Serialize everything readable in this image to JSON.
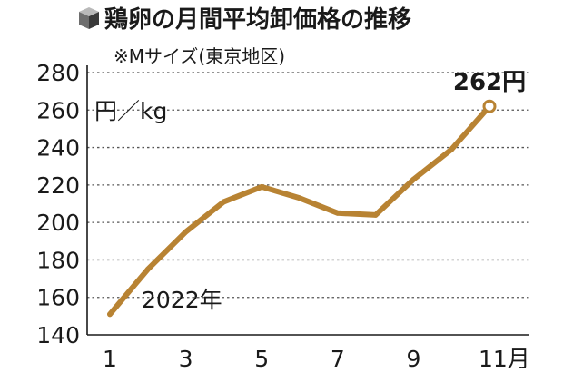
{
  "header": {
    "title": "鶏卵の月間平均卸価格の推移",
    "subtitle": "※Mサイズ(東京地区)",
    "icon": "cube-icon"
  },
  "chart_data": {
    "type": "line",
    "title": "鶏卵の月間平均卸価格の推移",
    "subtitle": "※Mサイズ(東京地区)",
    "unit_label": "円／kg",
    "year_label": "2022年",
    "x": [
      1,
      2,
      3,
      4,
      5,
      6,
      7,
      8,
      9,
      10,
      11
    ],
    "x_tick_values": [
      1,
      3,
      5,
      7,
      9,
      11
    ],
    "x_tick_labels": [
      "1",
      "3",
      "5",
      "7",
      "9",
      "11月"
    ],
    "y_ticks": [
      140,
      160,
      180,
      200,
      220,
      240,
      260,
      280
    ],
    "ylim": [
      140,
      280
    ],
    "xlim": [
      1,
      11
    ],
    "grid": "horizontal dashed",
    "series": [
      {
        "name": "",
        "values": [
          151,
          175,
          195,
          211,
          219,
          213,
          205,
          204,
          223,
          239,
          262
        ],
        "color": "#b88333"
      }
    ],
    "end_label": "262円",
    "end_marker": "hollow circle"
  }
}
